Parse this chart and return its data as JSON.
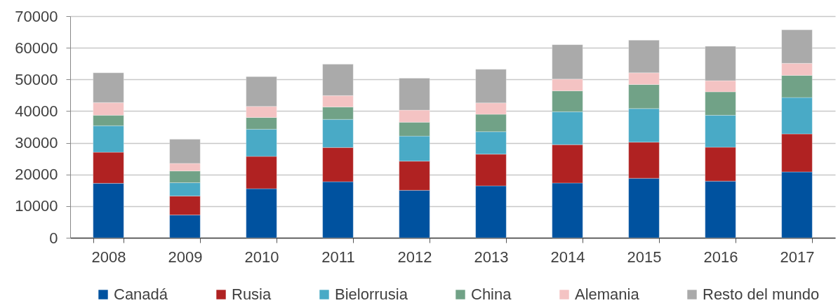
{
  "chart_data": {
    "type": "bar",
    "stacked": true,
    "categories": [
      "2008",
      "2009",
      "2010",
      "2011",
      "2012",
      "2013",
      "2014",
      "2015",
      "2016",
      "2017"
    ],
    "series": [
      {
        "name": "Canadá",
        "color": "#00529f",
        "values": [
          17200,
          7200,
          15500,
          17700,
          15000,
          16400,
          17300,
          18800,
          17900,
          20800
        ]
      },
      {
        "name": "Rusia",
        "color": "#b02222",
        "values": [
          9800,
          6000,
          10200,
          10800,
          9200,
          10000,
          12100,
          11400,
          10700,
          12000
        ]
      },
      {
        "name": "Bielorrusia",
        "color": "#49aac6",
        "values": [
          8400,
          4200,
          8600,
          8900,
          7900,
          7100,
          10400,
          10600,
          10100,
          11500
        ]
      },
      {
        "name": "China",
        "color": "#71a287",
        "values": [
          3300,
          3700,
          3700,
          3900,
          4400,
          5500,
          6600,
          7600,
          7400,
          7000
        ]
      },
      {
        "name": "Alemania",
        "color": "#f4c3c3",
        "values": [
          4000,
          2400,
          3500,
          3600,
          3800,
          3600,
          3700,
          3700,
          3500,
          3800
        ]
      },
      {
        "name": "Resto del mundo",
        "color": "#aaaaaa",
        "values": [
          9400,
          7600,
          9400,
          9900,
          10100,
          10600,
          10900,
          10300,
          10900,
          10600
        ]
      }
    ],
    "ylim": [
      0,
      70000
    ],
    "yticks": [
      0,
      10000,
      20000,
      30000,
      40000,
      50000,
      60000,
      70000
    ],
    "grid": "y",
    "legend": "bottom"
  }
}
